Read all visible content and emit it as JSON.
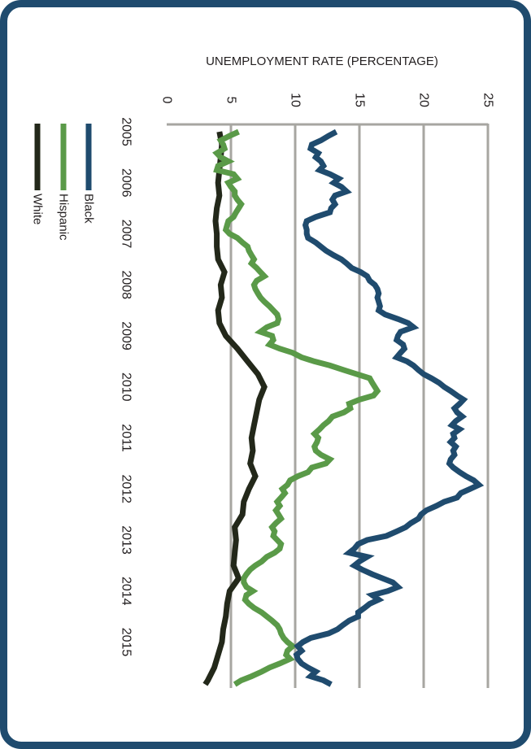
{
  "chart_data": {
    "type": "line",
    "ylabel": "UNEMPLOYMENT RATE (PERCENTAGE)",
    "ylim": [
      0,
      25
    ],
    "yticks": [
      "0",
      "5",
      "10",
      "15",
      "20",
      "25"
    ],
    "xlim": [
      2005,
      2015.9
    ],
    "xticks": [
      "2005",
      "2006",
      "2007",
      "2008",
      "2009",
      "2010",
      "2011",
      "2012",
      "2013",
      "2014",
      "2015"
    ],
    "grid": true,
    "legend_position": "left",
    "series": [
      {
        "name": "Black",
        "color": "#1f4b6e",
        "x": [
          2005.0,
          2005.08,
          2005.17,
          2005.25,
          2005.33,
          2005.42,
          2005.5,
          2005.58,
          2005.67,
          2005.75,
          2005.83,
          2005.92,
          2006.0,
          2006.08,
          2006.17,
          2006.25,
          2006.33,
          2006.42,
          2006.5,
          2006.58,
          2006.67,
          2006.75,
          2006.83,
          2006.92,
          2007.0,
          2007.08,
          2007.17,
          2007.25,
          2007.33,
          2007.42,
          2007.5,
          2007.58,
          2007.67,
          2007.75,
          2007.83,
          2007.92,
          2008.0,
          2008.08,
          2008.17,
          2008.25,
          2008.33,
          2008.42,
          2008.5,
          2008.58,
          2008.67,
          2008.75,
          2008.83,
          2008.92,
          2009.0,
          2009.08,
          2009.17,
          2009.25,
          2009.33,
          2009.42,
          2009.5,
          2009.58,
          2009.67,
          2009.75,
          2009.83,
          2009.92,
          2010.0,
          2010.08,
          2010.17,
          2010.25,
          2010.33,
          2010.42,
          2010.5,
          2010.58,
          2010.67,
          2010.75,
          2010.83,
          2010.92,
          2011.0,
          2011.08,
          2011.17,
          2011.25,
          2011.33,
          2011.42,
          2011.5,
          2011.58,
          2011.67,
          2011.75,
          2011.83,
          2011.92,
          2012.0,
          2012.08,
          2012.17,
          2012.25,
          2012.33,
          2012.42,
          2012.5,
          2012.58,
          2012.67,
          2012.75,
          2012.83,
          2012.92,
          2013.0,
          2013.08,
          2013.17,
          2013.25,
          2013.33,
          2013.42,
          2013.5,
          2013.58,
          2013.67,
          2013.75,
          2013.83,
          2013.92,
          2014.0,
          2014.08,
          2014.17,
          2014.25,
          2014.33,
          2014.42,
          2014.5,
          2014.58,
          2014.67,
          2014.75,
          2014.83,
          2014.92,
          2015.0,
          2015.08,
          2015.17,
          2015.25,
          2015.33,
          2015.42,
          2015.5,
          2015.58,
          2015.67,
          2015.75,
          2015.83
        ],
        "values": [
          13.2,
          12.6,
          12.0,
          11.3,
          11.2,
          11.8,
          11.6,
          12.0,
          12.2,
          11.9,
          12.7,
          13.4,
          13.0,
          13.6,
          14.0,
          13.1,
          12.9,
          13.1,
          12.8,
          12.7,
          11.6,
          10.9,
          10.8,
          10.9,
          10.9,
          11.0,
          11.6,
          12.0,
          12.4,
          13.0,
          13.6,
          14.0,
          14.4,
          15.1,
          15.6,
          15.8,
          16.2,
          16.4,
          16.5,
          16.4,
          16.5,
          16.6,
          16.5,
          17.0,
          18.0,
          18.8,
          19.2,
          18.2,
          18.0,
          17.9,
          18.4,
          18.5,
          18.2,
          17.9,
          18.7,
          19.2,
          19.6,
          20.0,
          20.6,
          21.2,
          21.6,
          22.1,
          22.6,
          23.1,
          22.8,
          22.4,
          22.6,
          23.0,
          22.5,
          22.2,
          22.8,
          22.3,
          22.4,
          22.1,
          22.5,
          22.3,
          22.4,
          22.1,
          22.0,
          22.3,
          22.8,
          23.3,
          23.9,
          24.3,
          23.6,
          22.9,
          22.6,
          21.6,
          21.0,
          20.2,
          19.8,
          19.6,
          19.0,
          18.6,
          17.9,
          17.1,
          15.6,
          14.9,
          14.6,
          14.2,
          15.6,
          15.0,
          14.6,
          15.2,
          16.0,
          16.8,
          17.6,
          18.0,
          17.2,
          16.0,
          16.5,
          15.8,
          15.4,
          14.9,
          14.9,
          14.2,
          13.7,
          13.3,
          12.6,
          11.2,
          10.6,
          10.2,
          10.5,
          10.1,
          10.2,
          10.5,
          11.0,
          11.6,
          11.2,
          12.2,
          12.8
        ]
      },
      {
        "name": "Hispanic",
        "color": "#5a9a48",
        "x": [
          2005.0,
          2005.08,
          2005.17,
          2005.25,
          2005.33,
          2005.42,
          2005.5,
          2005.58,
          2005.67,
          2005.75,
          2005.83,
          2005.92,
          2006.0,
          2006.08,
          2006.17,
          2006.25,
          2006.33,
          2006.42,
          2006.5,
          2006.58,
          2006.67,
          2006.75,
          2006.83,
          2006.92,
          2007.0,
          2007.08,
          2007.17,
          2007.25,
          2007.33,
          2007.42,
          2007.5,
          2007.58,
          2007.67,
          2007.75,
          2007.83,
          2007.92,
          2008.0,
          2008.08,
          2008.17,
          2008.25,
          2008.33,
          2008.42,
          2008.5,
          2008.58,
          2008.67,
          2008.75,
          2008.83,
          2008.92,
          2009.0,
          2009.08,
          2009.17,
          2009.25,
          2009.33,
          2009.42,
          2009.5,
          2009.58,
          2009.67,
          2009.75,
          2009.83,
          2009.92,
          2010.0,
          2010.08,
          2010.17,
          2010.25,
          2010.33,
          2010.42,
          2010.5,
          2010.58,
          2010.67,
          2010.75,
          2010.83,
          2010.92,
          2011.0,
          2011.08,
          2011.17,
          2011.25,
          2011.33,
          2011.42,
          2011.5,
          2011.58,
          2011.67,
          2011.75,
          2011.83,
          2011.92,
          2012.0,
          2012.08,
          2012.17,
          2012.25,
          2012.33,
          2012.42,
          2012.5,
          2012.58,
          2012.67,
          2012.75,
          2012.83,
          2012.92,
          2013.0,
          2013.08,
          2013.17,
          2013.25,
          2013.33,
          2013.42,
          2013.5,
          2013.58,
          2013.67,
          2013.75,
          2013.83,
          2013.92,
          2014.0,
          2014.08,
          2014.17,
          2014.25,
          2014.33,
          2014.42,
          2014.5,
          2014.58,
          2014.67,
          2014.75,
          2014.83,
          2014.92,
          2015.0,
          2015.08,
          2015.17,
          2015.25,
          2015.33,
          2015.42,
          2015.5,
          2015.58,
          2015.67,
          2015.75,
          2015.83
        ],
        "values": [
          5.6,
          4.9,
          4.2,
          4.4,
          4.5,
          3.9,
          4.2,
          4.8,
          4.0,
          3.9,
          5.2,
          5.5,
          4.8,
          5.0,
          5.3,
          5.3,
          5.5,
          5.8,
          5.6,
          5.4,
          5.2,
          4.8,
          4.7,
          4.6,
          4.9,
          5.5,
          5.9,
          6.3,
          6.4,
          6.6,
          6.8,
          6.6,
          7.0,
          7.3,
          7.6,
          7.0,
          6.8,
          6.9,
          7.1,
          7.3,
          7.6,
          8.0,
          8.3,
          8.6,
          8.7,
          8.6,
          7.8,
          7.3,
          8.2,
          8.3,
          8.0,
          8.8,
          9.8,
          10.5,
          11.5,
          12.7,
          13.8,
          14.8,
          15.8,
          16.0,
          16.2,
          16.4,
          16.1,
          15.0,
          14.2,
          14.3,
          13.8,
          12.9,
          12.6,
          12.2,
          11.9,
          11.5,
          11.8,
          11.7,
          11.5,
          11.6,
          12.0,
          12.7,
          12.4,
          11.3,
          11.0,
          10.2,
          9.6,
          9.4,
          9.0,
          9.2,
          8.9,
          8.6,
          8.8,
          8.5,
          8.7,
          8.9,
          8.5,
          8.2,
          8.4,
          8.3,
          8.6,
          8.9,
          8.8,
          8.4,
          7.8,
          7.4,
          6.9,
          6.5,
          6.2,
          6.0,
          6.0,
          6.2,
          6.7,
          6.2,
          6.1,
          6.4,
          6.8,
          7.4,
          7.8,
          8.2,
          8.6,
          8.8,
          8.9,
          9.1,
          9.4,
          9.8,
          9.4,
          9.3,
          9.6,
          8.8,
          8.0,
          7.4,
          6.6,
          5.8,
          5.3
        ]
      },
      {
        "name": "White",
        "color": "#23281a",
        "x": [
          2005.0,
          2005.25,
          2005.5,
          2005.75,
          2006.0,
          2006.25,
          2006.5,
          2006.75,
          2007.0,
          2007.25,
          2007.5,
          2007.75,
          2008.0,
          2008.25,
          2008.5,
          2008.75,
          2009.0,
          2009.25,
          2009.5,
          2009.75,
          2010.0,
          2010.25,
          2010.5,
          2010.75,
          2011.0,
          2011.25,
          2011.5,
          2011.75,
          2012.0,
          2012.25,
          2012.5,
          2012.75,
          2013.0,
          2013.25,
          2013.5,
          2013.75,
          2014.0,
          2014.25,
          2014.5,
          2014.75,
          2015.0,
          2015.25,
          2015.5,
          2015.75,
          2015.83
        ],
        "values": [
          4.1,
          4.3,
          4.2,
          4.1,
          4.0,
          4.1,
          3.9,
          3.8,
          3.9,
          3.9,
          4.0,
          4.5,
          4.2,
          4.3,
          4.0,
          4.1,
          4.6,
          5.5,
          6.3,
          7.1,
          7.6,
          7.2,
          7.0,
          6.8,
          6.6,
          6.7,
          6.5,
          6.9,
          6.4,
          6.0,
          5.9,
          5.3,
          5.4,
          5.3,
          5.2,
          5.6,
          4.9,
          4.7,
          4.6,
          4.4,
          4.3,
          4.0,
          3.7,
          3.2,
          3.0
        ]
      }
    ]
  }
}
